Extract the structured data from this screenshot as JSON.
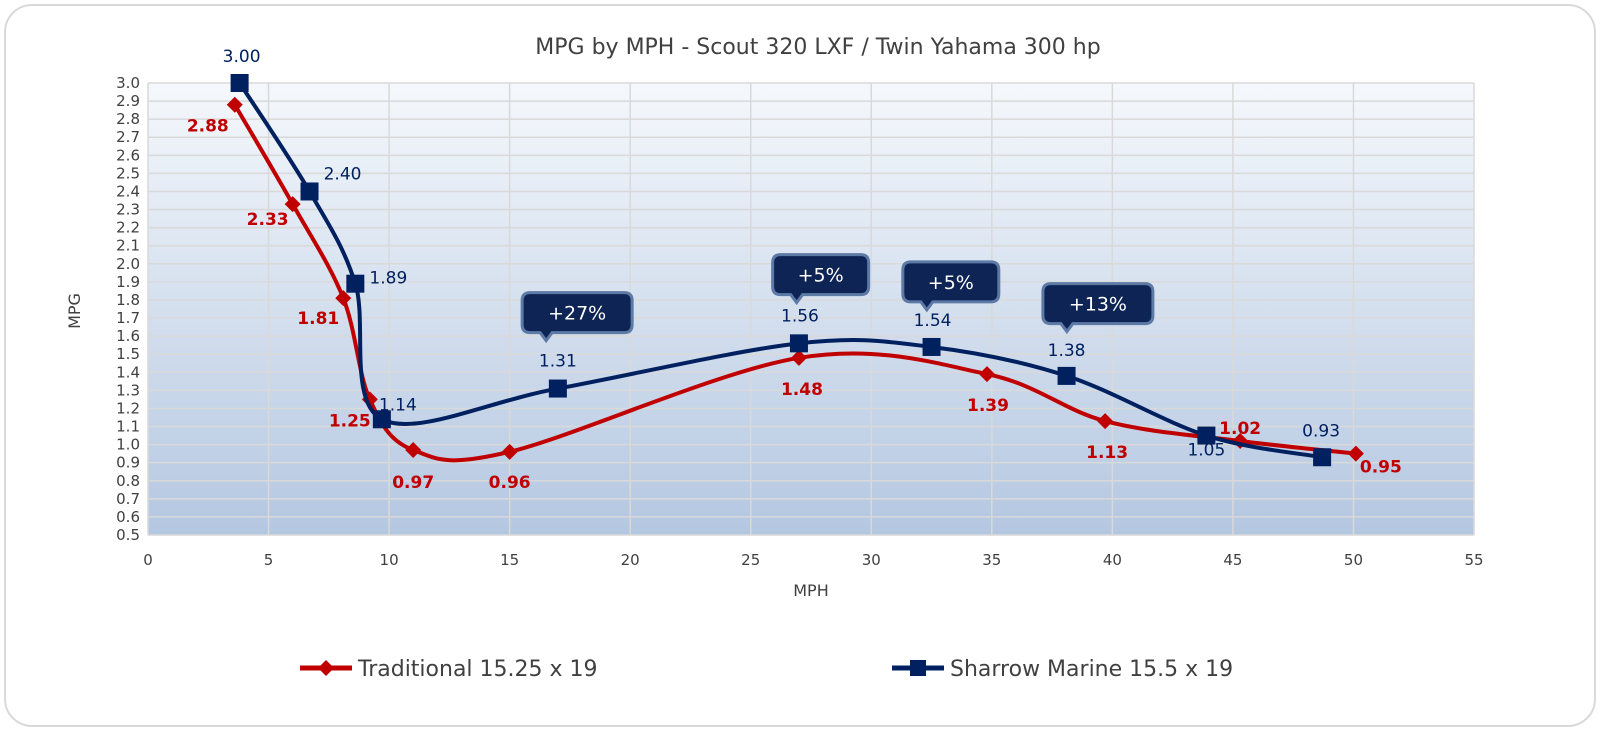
{
  "chart_data": {
    "type": "line",
    "title": "MPG by MPH - Scout 320 LXF / Twin Yahama 300 hp",
    "xlabel": "MPH",
    "ylabel": "MPG",
    "xlim": [
      0,
      55
    ],
    "ylim": [
      0.5,
      3.0
    ],
    "xticks": [
      "0",
      "5",
      "10",
      "15",
      "20",
      "25",
      "30",
      "35",
      "40",
      "45",
      "50",
      "55"
    ],
    "yticks": [
      "0.5",
      "0.6",
      "0.7",
      "0.8",
      "0.9",
      "1.0",
      "1.1",
      "1.2",
      "1.3",
      "1.4",
      "1.5",
      "1.6",
      "1.7",
      "1.8",
      "1.9",
      "2.0",
      "2.1",
      "2.2",
      "2.3",
      "2.4",
      "2.5",
      "2.6",
      "2.7",
      "2.8",
      "2.9",
      "3.0"
    ],
    "grid": true,
    "legend_position": "bottom",
    "series": [
      {
        "name": "Traditional 15.25 x 19",
        "color": "#c00000",
        "marker": "diamond",
        "x": [
          3.6,
          6.0,
          8.1,
          9.2,
          11.0,
          15.0,
          27.0,
          34.8,
          39.7,
          45.3,
          50.1
        ],
        "y": [
          2.88,
          2.33,
          1.81,
          1.25,
          0.97,
          0.96,
          1.48,
          1.39,
          1.13,
          1.02,
          0.95
        ],
        "labels": [
          "2.88",
          "2.33",
          "1.81",
          "1.25",
          "0.97",
          "0.96",
          "1.48",
          "1.39",
          "1.13",
          "1.02",
          "0.95"
        ]
      },
      {
        "name": "Sharrow Marine 15.5 x 19",
        "color": "#002060",
        "marker": "square",
        "x": [
          3.8,
          6.7,
          8.6,
          9.7,
          17.0,
          27.0,
          32.5,
          38.1,
          43.9,
          48.7
        ],
        "y": [
          3.0,
          2.4,
          1.89,
          1.14,
          1.31,
          1.56,
          1.54,
          1.38,
          1.05,
          0.93
        ],
        "labels": [
          "3.00",
          "2.40",
          "1.89",
          "1.14",
          "1.31",
          "1.56",
          "1.54",
          "1.38",
          "1.05",
          "0.93"
        ]
      }
    ],
    "annotations": [
      {
        "text": "+27%",
        "x": 17.8,
        "y": 1.73
      },
      {
        "text": "+5%",
        "x": 27.9,
        "y": 1.94
      },
      {
        "text": "+5%",
        "x": 33.3,
        "y": 1.9
      },
      {
        "text": "+13%",
        "x": 39.4,
        "y": 1.78
      }
    ]
  }
}
